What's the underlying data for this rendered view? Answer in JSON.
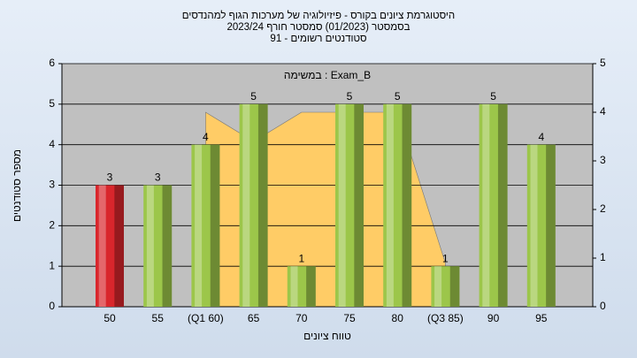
{
  "chart_data": {
    "type": "bar",
    "title": [
      "היסטוגרמת ציונים בקורס - פיזיולוגיה של מערכות הגוף למהנדסים",
      "בסמסטר (01/2023) סמסטר חורף 2023/24",
      "סטודנטים רשומים - 91"
    ],
    "annotation": "במשימה : Exam_B",
    "y_label": "מספר סטודנטים",
    "x_label": "טווח ציונים",
    "categories": [
      "50",
      "55",
      "(Q1 60)",
      "65",
      "70",
      "75",
      "80",
      "(Q3 85)",
      "90",
      "95"
    ],
    "series": [
      {
        "values": [
          3,
          3,
          4,
          5,
          1,
          5,
          5,
          1,
          5,
          4
        ],
        "colors": [
          "#d9262c",
          "#9cc64a",
          "#9cc64a",
          "#9cc64a",
          "#9cc64a",
          "#9cc64a",
          "#9cc64a",
          "#9cc64a",
          "#9cc64a",
          "#9cc64a"
        ]
      }
    ],
    "area": {
      "axis": "y2",
      "color": "#ffcc66",
      "values": [
        null,
        null,
        4,
        3.4,
        4,
        4,
        4,
        0.9,
        null,
        null
      ]
    },
    "ylim": [
      0,
      6
    ],
    "yticks": [
      0,
      1,
      2,
      3,
      4,
      5,
      6
    ],
    "y2lim": [
      0,
      5
    ],
    "y2ticks": [
      0,
      1,
      2,
      3,
      4,
      5
    ],
    "grid": true
  }
}
